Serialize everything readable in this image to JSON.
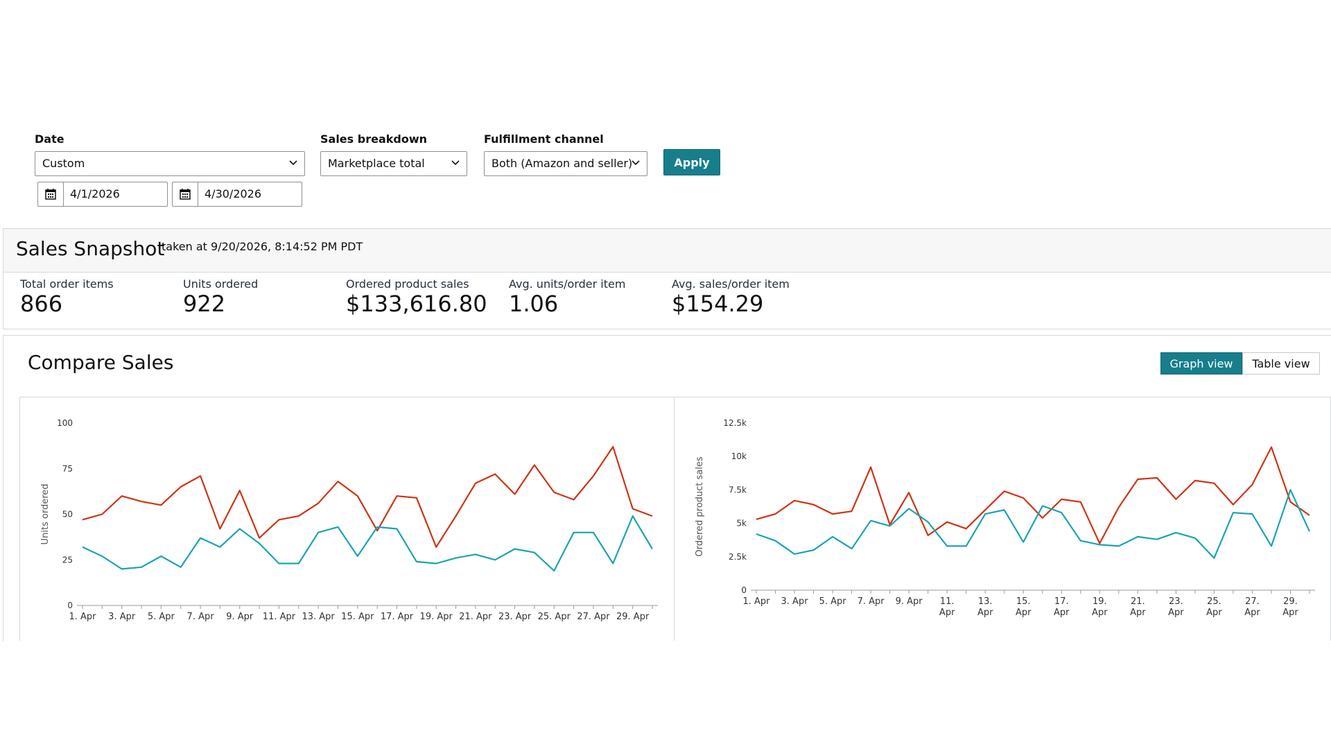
{
  "filters": {
    "date": {
      "label": "Date",
      "value": "Custom",
      "start": "4/1/2026",
      "end": "4/30/2026"
    },
    "sales_breakdown": {
      "label": "Sales breakdown",
      "value": "Marketplace total"
    },
    "fulfillment": {
      "label": "Fulfillment channel",
      "value": "Both (Amazon and seller)"
    },
    "apply_label": "Apply"
  },
  "snapshot": {
    "title": "Sales Snapshot",
    "taken_at": "taken at 9/20/2026, 8:14:52 PM PDT",
    "metrics": [
      {
        "label": "Total order items",
        "value": "866"
      },
      {
        "label": "Units ordered",
        "value": "922"
      },
      {
        "label": "Ordered product sales",
        "value": "$133,616.80"
      },
      {
        "label": "Avg. units/order item",
        "value": "1.06"
      },
      {
        "label": "Avg. sales/order item",
        "value": "$154.29"
      }
    ]
  },
  "compare": {
    "title": "Compare Sales",
    "graph_view": "Graph view",
    "table_view": "Table view"
  },
  "colors": {
    "series_red": "#d13212",
    "series_teal": "#1aa3b3",
    "accent": "#177e8c"
  },
  "chart_data": [
    {
      "type": "line",
      "ylabel": "Units ordered",
      "ylim": [
        0,
        100
      ],
      "yticks": [
        "0",
        "25",
        "50",
        "75",
        "100"
      ],
      "x": [
        "1. Apr",
        "2. Apr",
        "3. Apr",
        "4. Apr",
        "5. Apr",
        "6. Apr",
        "7. Apr",
        "8. Apr",
        "9. Apr",
        "10. Apr",
        "11. Apr",
        "12. Apr",
        "13. Apr",
        "14. Apr",
        "15. Apr",
        "16. Apr",
        "17. Apr",
        "18. Apr",
        "19. Apr",
        "20. Apr",
        "21. Apr",
        "22. Apr",
        "23. Apr",
        "24. Apr",
        "25. Apr",
        "26. Apr",
        "27. Apr",
        "28. Apr",
        "29. Apr",
        "30. Apr"
      ],
      "xticks": [
        "1. Apr",
        "3. Apr",
        "5. Apr",
        "7. Apr",
        "9. Apr",
        "11. Apr",
        "13. Apr",
        "15. Apr",
        "17. Apr",
        "19. Apr",
        "21. Apr",
        "23. Apr",
        "25. Apr",
        "27. Apr",
        "29. Apr"
      ],
      "series": [
        {
          "color": "#d13212",
          "values": [
            47,
            50,
            60,
            57,
            55,
            65,
            71,
            42,
            63,
            37,
            47,
            49,
            56,
            68,
            60,
            41,
            60,
            59,
            32,
            49,
            67,
            72,
            61,
            77,
            62,
            58,
            71,
            87,
            53,
            49
          ]
        },
        {
          "color": "#1aa3b3",
          "values": [
            32,
            27,
            20,
            21,
            27,
            21,
            37,
            32,
            42,
            34,
            23,
            23,
            40,
            43,
            27,
            43,
            42,
            24,
            23,
            26,
            28,
            25,
            31,
            29,
            19,
            40,
            40,
            23,
            49,
            31
          ]
        }
      ]
    },
    {
      "type": "line",
      "ylabel": "Ordered product sales",
      "ylim": [
        0,
        12500
      ],
      "yticks": [
        "0",
        "2.5k",
        "5k",
        "7.5k",
        "10k",
        "12.5k"
      ],
      "x": [
        "1. Apr",
        "2. Apr",
        "3. Apr",
        "4. Apr",
        "5. Apr",
        "6. Apr",
        "7. Apr",
        "8. Apr",
        "9. Apr",
        "10. Apr",
        "11. Apr",
        "12. Apr",
        "13. Apr",
        "14. Apr",
        "15. Apr",
        "16. Apr",
        "17. Apr",
        "18. Apr",
        "19. Apr",
        "20. Apr",
        "21. Apr",
        "22. Apr",
        "23. Apr",
        "24. Apr",
        "25. Apr",
        "26. Apr",
        "27. Apr",
        "28. Apr",
        "29. Apr",
        "30. Apr"
      ],
      "xticks": [
        "1. Apr",
        "3. Apr",
        "5. Apr",
        "7. Apr",
        "9. Apr",
        "11. Apr",
        "13. Apr",
        "15. Apr",
        "17. Apr",
        "19. Apr",
        "21. Apr",
        "23. Apr",
        "25. Apr",
        "27. Apr",
        "29. Apr"
      ],
      "series": [
        {
          "color": "#d13212",
          "values": [
            5300,
            5700,
            6700,
            6400,
            5700,
            5900,
            9200,
            4900,
            7300,
            4100,
            5100,
            4600,
            6000,
            7400,
            6900,
            5400,
            6800,
            6600,
            3500,
            6200,
            8300,
            8400,
            6800,
            8200,
            8000,
            6400,
            7900,
            10700,
            6600,
            5600
          ]
        },
        {
          "color": "#1aa3b3",
          "values": [
            4200,
            3700,
            2700,
            3000,
            4000,
            3100,
            5200,
            4800,
            6100,
            5100,
            3300,
            3300,
            5700,
            6000,
            3600,
            6300,
            5800,
            3700,
            3400,
            3300,
            4000,
            3800,
            4300,
            3900,
            2400,
            5800,
            5700,
            3300,
            7500,
            4400
          ]
        }
      ]
    }
  ]
}
